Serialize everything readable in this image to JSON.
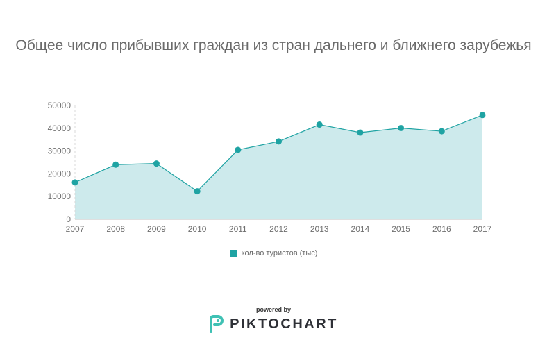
{
  "colors": {
    "accent": "#1fa3a3",
    "area_fill": "#cdeaec",
    "grid": "#d8d8d8",
    "axis_text": "#6f6f6f"
  },
  "chart_data": {
    "type": "area",
    "title": "Общее число прибывших граждан из стран дальнего и ближнего зарубежья",
    "x": [
      "2007",
      "2008",
      "2009",
      "2010",
      "2011",
      "2012",
      "2013",
      "2014",
      "2015",
      "2016",
      "2017"
    ],
    "series": [
      {
        "name": "кол-во туристов (тыс)",
        "values": [
          16200,
          24000,
          24500,
          12300,
          30500,
          34200,
          41600,
          38100,
          40100,
          38700,
          45800
        ]
      }
    ],
    "y_ticks": [
      "0",
      "10000",
      "20000",
      "30000",
      "40000",
      "50000"
    ],
    "ylim": [
      0,
      50000
    ],
    "xlabel": "",
    "ylabel": "",
    "grid": false,
    "legend_position": "bottom"
  },
  "footer": {
    "powered_by": "powered by",
    "brand": "PIKTOCHART",
    "logo_icon": "piktochart-logo-icon"
  }
}
